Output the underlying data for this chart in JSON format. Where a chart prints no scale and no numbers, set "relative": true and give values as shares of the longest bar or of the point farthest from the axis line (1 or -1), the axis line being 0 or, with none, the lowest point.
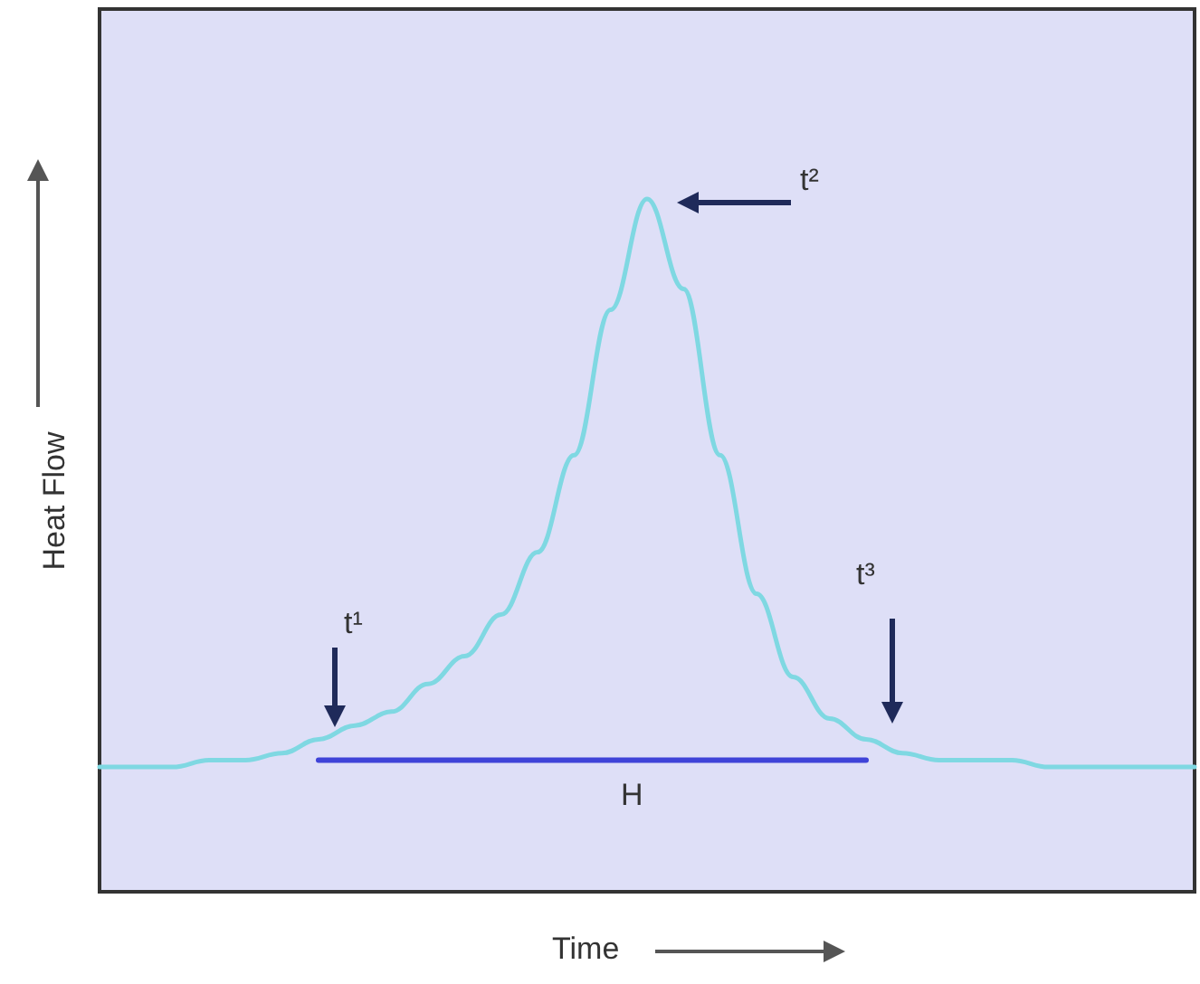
{
  "chart_data": {
    "type": "line",
    "relative": true,
    "xlabel": "Time",
    "ylabel": "Heat Flow",
    "categories": [
      null,
      null,
      null,
      null,
      null,
      null,
      null,
      null,
      null,
      null,
      null,
      null,
      null,
      null,
      null,
      null,
      null,
      null,
      null,
      null,
      null,
      null,
      null,
      null,
      null,
      null,
      null,
      null,
      null,
      null,
      null
    ],
    "series": [
      {
        "color": "#7fd8e2",
        "values": [
          0.18,
          0.18,
          0.18,
          0.19,
          0.19,
          0.2,
          0.22,
          0.24,
          0.26,
          0.3,
          0.34,
          0.4,
          0.49,
          0.63,
          0.84,
          1,
          0.87,
          0.63,
          0.43,
          0.31,
          0.25,
          0.22,
          0.2,
          0.19,
          0.19,
          0.19,
          0.18,
          0.18,
          0.18,
          0.18,
          0.18
        ]
      },
      {
        "color": "#3f43d8",
        "values": [
          null,
          null,
          null,
          null,
          null,
          null,
          0.19,
          0.19,
          0.19,
          0.19,
          0.19,
          0.19,
          0.19,
          0.19,
          0.19,
          0.19,
          0.19,
          0.19,
          0.19,
          0.19,
          0.19,
          0.19,
          null,
          null,
          null,
          null,
          null,
          null,
          null,
          null,
          null
        ]
      }
    ],
    "annotations": [
      "t¹",
      "t²",
      "t³",
      "H"
    ],
    "grid": false,
    "marker": "none",
    "line_style": "solid"
  }
}
